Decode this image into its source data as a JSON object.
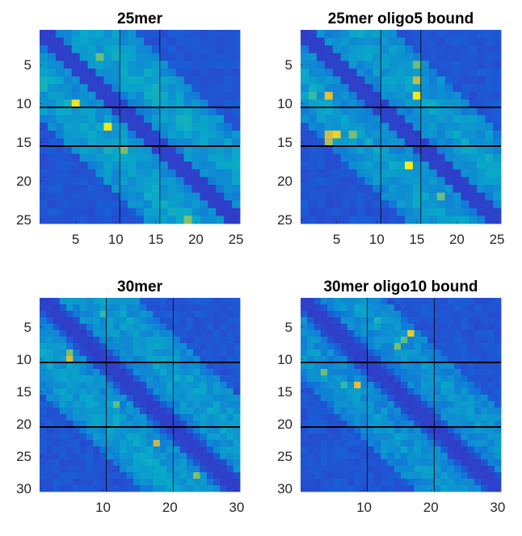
{
  "colormap": "parula",
  "chart_data": [
    {
      "type": "heatmap",
      "title": "25mer",
      "n": 25,
      "xticks": [
        5,
        10,
        15,
        20,
        25
      ],
      "yticks": [
        5,
        10,
        15,
        20,
        25
      ],
      "thick_lines": [
        10,
        15
      ],
      "thin_lines": [
        10,
        15
      ],
      "band": {
        "start": 2,
        "end": 11,
        "off_diag": [
          [
            1,
            10
          ],
          [
            16,
            25
          ]
        ]
      },
      "background_level": 0.16,
      "band_level": 0.42,
      "hotspots": [
        {
          "row": 10,
          "col": 5,
          "value": 0.95
        },
        {
          "row": 13,
          "col": 9,
          "value": 0.96
        },
        {
          "row": 4,
          "col": 8,
          "value": 0.7
        },
        {
          "row": 16,
          "col": 11,
          "value": 0.72
        },
        {
          "row": 25,
          "col": 19,
          "value": 0.75
        }
      ]
    },
    {
      "type": "heatmap",
      "title": "25mer oligo5 bound",
      "n": 25,
      "xticks": [
        5,
        10,
        15,
        20,
        25
      ],
      "yticks": [
        5,
        10,
        15,
        20,
        25
      ],
      "thick_lines": [
        10,
        15
      ],
      "thin_lines": [
        10,
        15
      ],
      "band": {
        "start": 2,
        "end": 11,
        "off_diag": [
          [
            1,
            10
          ],
          [
            16,
            25
          ]
        ]
      },
      "background_level": 0.16,
      "band_level": 0.4,
      "hotspots": [
        {
          "row": 9,
          "col": 4,
          "value": 0.88
        },
        {
          "row": 9,
          "col": 15,
          "value": 0.96
        },
        {
          "row": 7,
          "col": 15,
          "value": 0.82
        },
        {
          "row": 5,
          "col": 15,
          "value": 0.7
        },
        {
          "row": 14,
          "col": 4,
          "value": 0.85
        },
        {
          "row": 14,
          "col": 5,
          "value": 0.92
        },
        {
          "row": 15,
          "col": 4,
          "value": 0.8
        },
        {
          "row": 14,
          "col": 7,
          "value": 0.72
        },
        {
          "row": 18,
          "col": 14,
          "value": 0.97
        },
        {
          "row": 22,
          "col": 18,
          "value": 0.7
        },
        {
          "row": 9,
          "col": 2,
          "value": 0.62
        }
      ]
    },
    {
      "type": "heatmap",
      "title": "30mer",
      "n": 30,
      "xticks": [
        10,
        20,
        30
      ],
      "yticks": [
        5,
        10,
        15,
        20,
        25,
        30
      ],
      "thick_lines": [
        10,
        20
      ],
      "thin_lines": [
        10,
        20
      ],
      "band": {
        "start": 3,
        "end": 14,
        "off_diag": [
          [
            1,
            12
          ],
          [
            18,
            30
          ]
        ]
      },
      "background_level": 0.16,
      "band_level": 0.4,
      "hotspots": [
        {
          "row": 9,
          "col": 5,
          "value": 0.72
        },
        {
          "row": 10,
          "col": 5,
          "value": 0.85
        },
        {
          "row": 23,
          "col": 18,
          "value": 0.82
        },
        {
          "row": 28,
          "col": 24,
          "value": 0.75
        },
        {
          "row": 17,
          "col": 12,
          "value": 0.68
        },
        {
          "row": 3,
          "col": 10,
          "value": 0.6
        }
      ]
    },
    {
      "type": "heatmap",
      "title": "30mer oligo10 bound",
      "n": 30,
      "xticks": [
        10,
        20,
        30
      ],
      "yticks": [
        5,
        10,
        15,
        20,
        25,
        30
      ],
      "thick_lines": [
        10,
        20
      ],
      "thin_lines": [
        10,
        20
      ],
      "band": {
        "start": 3,
        "end": 12,
        "off_diag": [
          [
            1,
            10
          ],
          [
            20,
            30
          ]
        ]
      },
      "background_level": 0.16,
      "band_level": 0.36,
      "hotspots": [
        {
          "row": 6,
          "col": 17,
          "value": 0.9
        },
        {
          "row": 7,
          "col": 16,
          "value": 0.68
        },
        {
          "row": 8,
          "col": 15,
          "value": 0.72
        },
        {
          "row": 14,
          "col": 9,
          "value": 0.88
        },
        {
          "row": 12,
          "col": 4,
          "value": 0.7
        },
        {
          "row": 14,
          "col": 7,
          "value": 0.62
        },
        {
          "row": 4,
          "col": 12,
          "value": 0.55
        }
      ]
    }
  ]
}
